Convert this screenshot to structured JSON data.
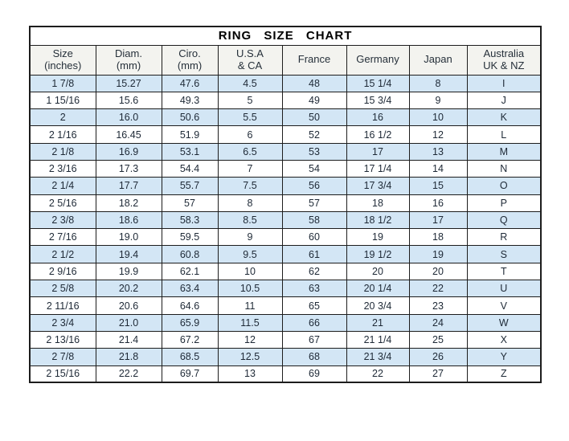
{
  "title": "RING SIZE CHART",
  "chart_data": {
    "type": "table",
    "title": "RING SIZE CHART",
    "columns": [
      {
        "label": "Size",
        "sublabel": "(inches)"
      },
      {
        "label": "Diam.",
        "sublabel": "(mm)"
      },
      {
        "label": "Ciro.",
        "sublabel": "(mm)"
      },
      {
        "label": "U.S.A",
        "sublabel": "& CA"
      },
      {
        "label": "France",
        "sublabel": ""
      },
      {
        "label": "Germany",
        "sublabel": ""
      },
      {
        "label": "Japan",
        "sublabel": ""
      },
      {
        "label": "Australia",
        "sublabel": "UK & NZ"
      }
    ],
    "rows": [
      [
        "1 7/8",
        "15.27",
        "47.6",
        "4.5",
        "48",
        "15 1/4",
        "8",
        "I"
      ],
      [
        "1 15/16",
        "15.6",
        "49.3",
        "5",
        "49",
        "15 3/4",
        "9",
        "J"
      ],
      [
        "2",
        "16.0",
        "50.6",
        "5.5",
        "50",
        "16",
        "10",
        "K"
      ],
      [
        "2 1/16",
        "16.45",
        "51.9",
        "6",
        "52",
        "16 1/2",
        "12",
        "L"
      ],
      [
        "2 1/8",
        "16.9",
        "53.1",
        "6.5",
        "53",
        "17",
        "13",
        "M"
      ],
      [
        "2 3/16",
        "17.3",
        "54.4",
        "7",
        "54",
        "17 1/4",
        "14",
        "N"
      ],
      [
        "2 1/4",
        "17.7",
        "55.7",
        "7.5",
        "56",
        "17 3/4",
        "15",
        "O"
      ],
      [
        "2 5/16",
        "18.2",
        "57",
        "8",
        "57",
        "18",
        "16",
        "P"
      ],
      [
        "2 3/8",
        "18.6",
        "58.3",
        "8.5",
        "58",
        "18 1/2",
        "17",
        "Q"
      ],
      [
        "2 7/16",
        "19.0",
        "59.5",
        "9",
        "60",
        "19",
        "18",
        "R"
      ],
      [
        "2 1/2",
        "19.4",
        "60.8",
        "9.5",
        "61",
        "19 1/2",
        "19",
        "S"
      ],
      [
        "2 9/16",
        "19.9",
        "62.1",
        "10",
        "62",
        "20",
        "20",
        "T"
      ],
      [
        "2 5/8",
        "20.2",
        "63.4",
        "10.5",
        "63",
        "20 1/4",
        "22",
        "U"
      ],
      [
        "2 11/16",
        "20.6",
        "64.6",
        "11",
        "65",
        "20 3/4",
        "23",
        "V"
      ],
      [
        "2 3/4",
        "21.0",
        "65.9",
        "11.5",
        "66",
        "21",
        "24",
        "W"
      ],
      [
        "2 13/16",
        "21.4",
        "67.2",
        "12",
        "67",
        "21 1/4",
        "25",
        "X"
      ],
      [
        "2 7/8",
        "21.8",
        "68.5",
        "12.5",
        "68",
        "21 3/4",
        "26",
        "Y"
      ],
      [
        "2 15/16",
        "22.2",
        "69.7",
        "13",
        "69",
        "22",
        "27",
        "Z"
      ]
    ],
    "layout": {
      "striped": true,
      "stripe_rows": "odd rows starting with first data row",
      "grid": true,
      "alignment": "center"
    }
  },
  "colors": {
    "stripe_blue": "#d3e6f5",
    "header_bg": "#f3f3ef",
    "border": "#1d1d1d",
    "text": "#1e2936",
    "page_bg": "#ffffff"
  }
}
